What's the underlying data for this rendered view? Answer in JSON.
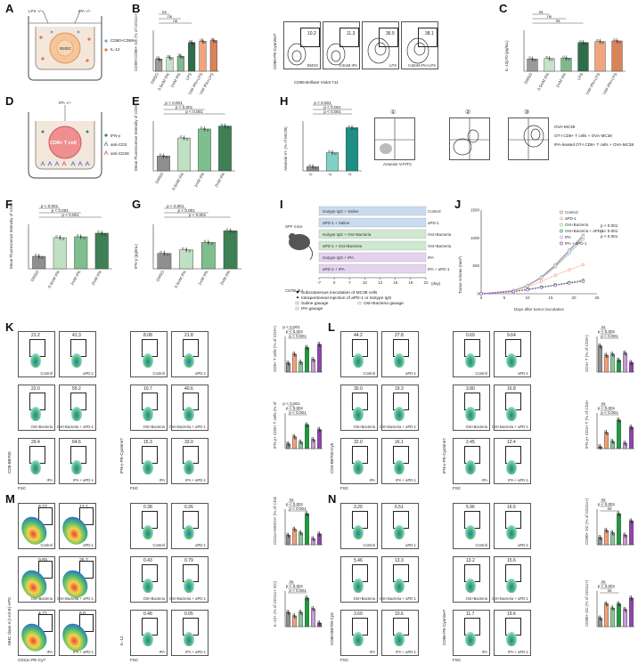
{
  "panel_letters": [
    "A",
    "B",
    "C",
    "D",
    "E",
    "F",
    "G",
    "H",
    "I",
    "J",
    "K",
    "L",
    "M",
    "N"
  ],
  "colors": {
    "gray": "#8f8f8f",
    "lightgreen": "#bfe0c2",
    "midgreen": "#8ac79a",
    "darkgreen": "#3f7f55",
    "teal": "#1f8f85",
    "salmon": "#f4a07a",
    "red": "#e2453c",
    "pink": "#f29ba8",
    "green": "#1e9c3c",
    "purple": "#8e44ad",
    "lilac": "#c79bd8"
  },
  "A": {
    "lps_label": "LPS +/−",
    "ipa_label": "IPA +/−",
    "cell_label": "BMDC",
    "legend": [
      "CD80+CD86+",
      "IL-12"
    ]
  },
  "B": {
    "ylabel": "CD80+CD86+ DC (% of CD11c+)",
    "categories": [
      "DMSO",
      "0.5mM IPA",
      "1mM IPA",
      "LPS",
      "0.5mM IPA+LPS",
      "1mM IPA+LPS"
    ],
    "sig": [
      "ns",
      "ns",
      "ns"
    ],
    "flow_labels": [
      "DMSO",
      "0.5mM IPA",
      "LPS",
      "0.5mM IPA+LPS"
    ],
    "flow_pcts": [
      "10.2",
      "11.3",
      "36.5",
      "38.1"
    ],
    "flow_x": "CD86-Brilliant Violet 711",
    "flow_y": "CD80-PE-Cyanine7"
  },
  "C": {
    "ylabel": "IL-12p70 (pg/mL)",
    "categories": [
      "DMSO",
      "0.5mM IPA",
      "1mM IPA",
      "LPS",
      "0.5mM IPA+LPS",
      "1mM IPA+LPS"
    ],
    "sig": [
      "ns",
      "ns",
      "ns"
    ]
  },
  "D": {
    "ipa_label": "IPA +/−",
    "cell_label": "CD8+ T cell",
    "legend": [
      "IFN-γ",
      "anti-CD3",
      "anti-CD28"
    ]
  },
  "E": {
    "ylabel": "Mean Fluorescence Intensity of CD69",
    "categories": [
      "DMSO",
      "0.5mM IPA",
      "1mM IPA",
      "2mM IPA"
    ],
    "sig": [
      "p < 0.001",
      "p < 0.001",
      "p < 0.001"
    ]
  },
  "F": {
    "ylabel": "Mean Fluorescence Intensity of CD69",
    "categories": [
      "DMSO",
      "0.5mM IPA",
      "1mM IPA",
      "2mM IPA"
    ],
    "sig": [
      "p < 0.001",
      "p < 0.001",
      "p < 0.001"
    ]
  },
  "G": {
    "ylabel": "IFN-γ (pg/mL)",
    "categories": [
      "DMSO",
      "0.5mM IPA",
      "1mM IPA",
      "2mM IPA"
    ],
    "sig": [
      "p < 0.001",
      "p < 0.001",
      "p < 0.001"
    ]
  },
  "H": {
    "ylabel": "Annexin V+ (% of MC38)",
    "categories": [
      "①",
      "②",
      "③"
    ],
    "sig": [
      "p < 0.001",
      "p < 0.001",
      "p < 0.001"
    ],
    "flow_labels": [
      "①",
      "②",
      "③"
    ],
    "flow_x": "Annexin V-FITC",
    "legend": [
      "OVA-MC38",
      "OT-I CD8+ T cells + OVA-MC38",
      "IPA-treated OT-I CD8+ T cells + OVA-MC38"
    ]
  },
  "I": {
    "mouse_label": "SPF mice",
    "strain_label": "C57BL/6J",
    "groups": [
      "Control",
      "aPD-1",
      "Ost+Bacteria",
      "Ost+Bacteria + aPD-1",
      "IPA",
      "IPA + aPD-1"
    ],
    "treatments": [
      "Isotype IgG + Saline",
      "aPD-1 + Saline",
      "Isotype IgG + Ost+Bacteria",
      "aPD-1 + Ost+Bacteria",
      "Isotype IgG + IPA",
      "aPD-1 + IPA"
    ],
    "days": [
      "-7",
      "0",
      "7",
      "10",
      "13",
      "16",
      "19",
      "22"
    ],
    "days_unit": "(day)",
    "legend": [
      "Subcutaneous inoculation of MC38 cells",
      "Intraperitoneal injection of aPD-1 or Isotype IgG",
      "Saline gavage",
      "Ost+Bacteria gavage",
      "IPA gavage"
    ]
  },
  "J": {
    "ylabel": "Tumor volume (mm³)",
    "xlabel": "Days after tumor inoculation",
    "series": [
      "Control",
      "aPD-1",
      "Ost+Bacteria",
      "Ost+Bacteria + aPD-1",
      "IPA",
      "IPA + aPD-1"
    ],
    "sig": [
      "p < 0.001",
      "p < 0.001",
      "p < 0.001"
    ]
  },
  "K": {
    "flow": [
      {
        "pct": "21.2",
        "label": "Control"
      },
      {
        "pct": "41.3",
        "label": "aPD-1"
      },
      {
        "pct": "22.0",
        "label": "Ost+Bacteria"
      },
      {
        "pct": "55.2",
        "label": "Ost+Bacteria + aPD-1"
      },
      {
        "pct": "29.4",
        "label": "IPA"
      },
      {
        "pct": "64.6",
        "label": "IPA + aPD-1"
      }
    ],
    "flow2": [
      {
        "pct": "8.08",
        "label": "Control"
      },
      {
        "pct": "21.8",
        "label": "aPD-1"
      },
      {
        "pct": "10.7",
        "label": "Ost+Bacteria"
      },
      {
        "pct": "40.6",
        "label": "Ost+Bacteria + aPD-1"
      },
      {
        "pct": "15.3",
        "label": "IPA"
      },
      {
        "pct": "33.0",
        "label": "IPA + aPD-1"
      }
    ],
    "x_title": "FSC",
    "y_title": "CD8-BB700",
    "y_title2": "IFN-γ-PE-Cyanine7",
    "bar1_ylabel": "CD8+ T cells (% of CD3+)",
    "bar2_ylabel": "IFN-γ+ CD8+ T cells (% of CD8+)",
    "sig": [
      "p < 0.001",
      "p < 0.001",
      "p < 0.001"
    ]
  },
  "L": {
    "flow": [
      {
        "pct": "44.2",
        "label": "Control"
      },
      {
        "pct": "27.8",
        "label": "aPD-1"
      },
      {
        "pct": "30.0",
        "label": "Ost+Bacteria"
      },
      {
        "pct": "19.3",
        "label": "Ost+Bacteria + aPD-1"
      },
      {
        "pct": "32.0",
        "label": "IPA"
      },
      {
        "pct": "16.1",
        "label": "IPA + aPD-1"
      }
    ],
    "flow2": [
      {
        "pct": "0.69",
        "label": "Control"
      },
      {
        "pct": "9.64",
        "label": "aPD-1"
      },
      {
        "pct": "3.80",
        "label": "Ost+Bacteria"
      },
      {
        "pct": "16.8",
        "label": "Ost+Bacteria + aPD-1"
      },
      {
        "pct": "2.45",
        "label": "IPA"
      },
      {
        "pct": "12.4",
        "label": "IPA + aPD-1"
      }
    ],
    "x_title": "FSC",
    "y_title": "CD4-BB700-Cy5",
    "y_title2": "IFN-γ-PE-Cyanine7",
    "bar1_ylabel": "CD4+ T (% of CD3+)",
    "bar2_ylabel": "IFN-γ+ CD4+ T (% of CD4+)",
    "sig": [
      "ns",
      "p < 0.001",
      "p < 0.001"
    ]
  },
  "M": {
    "flow": [
      {
        "pct": "8.77",
        "label": "Control"
      },
      {
        "pct": "13.1",
        "label": "aPD-1"
      },
      {
        "pct": "9.89",
        "label": "Ost+Bacteria"
      },
      {
        "pct": "26.7",
        "label": "Ost+Bacteria + aPD-1"
      },
      {
        "pct": "4.71",
        "label": "IPA"
      },
      {
        "pct": "8.8",
        "label": "IPA + aPD-1"
      }
    ],
    "flow2": [
      {
        "pct": "0.38",
        "label": "Control"
      },
      {
        "pct": "0.26",
        "label": "aPD-1"
      },
      {
        "pct": "0.43",
        "label": "Ost+Bacteria"
      },
      {
        "pct": "0.79",
        "label": "Ost+Bacteria + aPD-1"
      },
      {
        "pct": "0.48",
        "label": "IPA"
      },
      {
        "pct": "0.05",
        "label": "IPA + aPD-1"
      }
    ],
    "x_title": "CD11c-PE-Cy7",
    "x_title2": "FSC",
    "y_title": "MHC class II (I-A/I-E)-APC",
    "y_title2": "IL-12",
    "bar1_ylabel": "CD11c+MHCII+ (% of CD45+)",
    "bar2_ylabel": "IL-12+ (% of CD11c+ DC)",
    "sig": [
      "ns",
      "p < 0.001",
      "p < 0.001"
    ]
  },
  "N": {
    "flow": [
      {
        "pct": "3.20",
        "label": "Control"
      },
      {
        "pct": "6.51",
        "label": "aPD-1"
      },
      {
        "pct": "5.46",
        "label": "Ost+Bacteria"
      },
      {
        "pct": "13.3",
        "label": "Ost+Bacteria + aPD-1"
      },
      {
        "pct": "3.60",
        "label": "IPA"
      },
      {
        "pct": "10.6",
        "label": "IPA + aPD-1"
      }
    ],
    "flow2": [
      {
        "pct": "5.96",
        "label": "Control"
      },
      {
        "pct": "16.6",
        "label": "aPD-1"
      },
      {
        "pct": "13.2",
        "label": "Ost+Bacteria"
      },
      {
        "pct": "15.6",
        "label": "Ost+Bacteria + aPD-1"
      },
      {
        "pct": "11.7",
        "label": "IPA"
      },
      {
        "pct": "19.6",
        "label": "IPA + aPD-1"
      }
    ],
    "x_title": "FSC",
    "y_title": "CD80-BB700-Cy5",
    "y_title2": "CD86-PE-Cyanine7",
    "bar1_ylabel": "CD80+ DC (% of CD11c+)",
    "bar2_ylabel": "CD86+ DC (% of CD11c+)",
    "sig": [
      "ns",
      "p < 0.001",
      "ns"
    ]
  },
  "chart_data": [
    {
      "panel": "B",
      "type": "bar",
      "categories": [
        "DMSO",
        "0.5mM IPA",
        "1mM IPA",
        "LPS",
        "0.5mM IPA+LPS",
        "1mM IPA+LPS"
      ],
      "values": [
        18,
        20,
        22,
        42,
        44,
        45
      ],
      "ylim": [
        0,
        60
      ]
    },
    {
      "panel": "C",
      "type": "bar",
      "categories": [
        "DMSO",
        "0.5mM IPA",
        "1mM IPA",
        "LPS",
        "0.5mM IPA+LPS",
        "1mM IPA+LPS"
      ],
      "values": [
        60,
        62,
        64,
        140,
        145,
        148
      ],
      "ylim": [
        0,
        200
      ]
    },
    {
      "panel": "E",
      "type": "bar",
      "categories": [
        "DMSO",
        "0.5mM IPA",
        "1mM IPA",
        "2mM IPA"
      ],
      "values": [
        1500,
        3300,
        4200,
        4500
      ],
      "ylim": [
        0,
        5000
      ]
    },
    {
      "panel": "F",
      "type": "bar",
      "categories": [
        "DMSO",
        "0.5mM IPA",
        "1mM IPA",
        "2mM IPA"
      ],
      "values": [
        28,
        70,
        72,
        80
      ],
      "ylim": [
        0,
        100
      ]
    },
    {
      "panel": "G",
      "type": "bar",
      "categories": [
        "DMSO",
        "0.5mM IPA",
        "1mM IPA",
        "2mM IPA"
      ],
      "values": [
        520,
        640,
        890,
        1280
      ],
      "ylim": [
        0,
        1500
      ]
    },
    {
      "panel": "H",
      "type": "bar",
      "categories": [
        "①",
        "②",
        "③"
      ],
      "values": [
        5,
        22,
        52
      ],
      "ylim": [
        0,
        60
      ]
    },
    {
      "panel": "J",
      "type": "line",
      "x": [
        0,
        7,
        10,
        13,
        16,
        19,
        22
      ],
      "series": [
        {
          "name": "Control",
          "values": [
            0,
            60,
            150,
            300,
            520,
            780,
            1050
          ]
        },
        {
          "name": "aPD-1",
          "values": [
            0,
            50,
            120,
            220,
            330,
            430,
            520
          ]
        },
        {
          "name": "Ost+Bacteria",
          "values": [
            0,
            55,
            140,
            280,
            480,
            720,
            980
          ]
        },
        {
          "name": "Ost+Bacteria + aPD-1",
          "values": [
            0,
            40,
            80,
            120,
            160,
            200,
            240
          ]
        },
        {
          "name": "IPA",
          "values": [
            0,
            58,
            145,
            290,
            500,
            760,
            1020
          ]
        },
        {
          "name": "IPA + aPD-1",
          "values": [
            0,
            35,
            70,
            110,
            150,
            190,
            220
          ]
        }
      ],
      "ylim": [
        0,
        1500
      ],
      "xlim": [
        0,
        25
      ]
    },
    {
      "panel": "K1",
      "type": "bar",
      "categories": [
        "Control",
        "aPD-1",
        "Ost+Bacteria",
        "Ost+Bacteria + aPD-1",
        "IPA",
        "IPA + aPD-1"
      ],
      "values": [
        20,
        40,
        22,
        55,
        28,
        62
      ],
      "ylim": [
        0,
        80
      ]
    },
    {
      "panel": "K2",
      "type": "bar",
      "categories": [
        "Control",
        "aPD-1",
        "Ost+Bacteria",
        "Ost+Bacteria + aPD-1",
        "IPA",
        "IPA + aPD-1"
      ],
      "values": [
        8,
        20,
        11,
        40,
        15,
        32
      ],
      "ylim": [
        0,
        60
      ]
    },
    {
      "panel": "L1",
      "type": "bar",
      "categories": [
        "Control",
        "aPD-1",
        "Ost+Bacteria",
        "Ost+Bacteria + aPD-1",
        "IPA",
        "IPA + aPD-1"
      ],
      "values": [
        44,
        28,
        30,
        20,
        32,
        16
      ],
      "ylim": [
        0,
        60
      ]
    },
    {
      "panel": "L2",
      "type": "bar",
      "categories": [
        "Control",
        "aPD-1",
        "Ost+Bacteria",
        "Ost+Bacteria + aPD-1",
        "IPA",
        "IPA + aPD-1"
      ],
      "values": [
        1,
        9,
        4,
        16,
        3,
        12
      ],
      "ylim": [
        0,
        20
      ]
    },
    {
      "panel": "M1",
      "type": "bar",
      "categories": [
        "Control",
        "aPD-1",
        "Ost+Bacteria",
        "Ost+Bacteria + aPD-1",
        "IPA",
        "IPA + aPD-1"
      ],
      "values": [
        8,
        13,
        10,
        26,
        5,
        9
      ],
      "ylim": [
        0,
        30
      ]
    },
    {
      "panel": "M2",
      "type": "bar",
      "categories": [
        "Control",
        "aPD-1",
        "Ost+Bacteria",
        "Ost+Bacteria + aPD-1",
        "IPA",
        "IPA + aPD-1"
      ],
      "values": [
        0.4,
        0.3,
        0.4,
        0.8,
        0.5,
        0.1
      ],
      "ylim": [
        0,
        1
      ]
    },
    {
      "panel": "N1",
      "type": "bar",
      "categories": [
        "Control",
        "aPD-1",
        "Ost+Bacteria",
        "Ost+Bacteria + aPD-1",
        "IPA",
        "IPA + aPD-1"
      ],
      "values": [
        3,
        6,
        5,
        13,
        4,
        10
      ],
      "ylim": [
        0,
        15
      ]
    },
    {
      "panel": "N2",
      "type": "bar",
      "categories": [
        "Control",
        "aPD-1",
        "Ost+Bacteria",
        "Ost+Bacteria + aPD-1",
        "IPA",
        "IPA + aPD-1"
      ],
      "values": [
        6,
        16,
        13,
        16,
        12,
        20
      ],
      "ylim": [
        0,
        25
      ]
    }
  ]
}
